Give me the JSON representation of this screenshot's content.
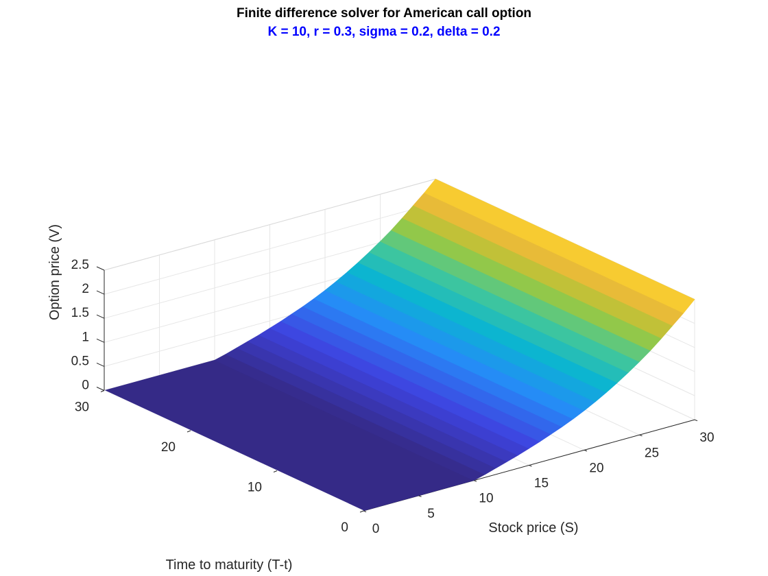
{
  "chart_data": {
    "type": "surface",
    "title": "Finite difference solver for American call option",
    "subtitle": "K = 10, r = 0.3, sigma = 0.2, delta = 0.2",
    "subtitle_color": "#0000ff",
    "xlabel": "Stock price (S)",
    "ylabel": "Time to maturity (T-t)",
    "zlabel": "Option price (V)",
    "xlim": [
      0,
      30
    ],
    "ylim": [
      0,
      30
    ],
    "zlim": [
      0,
      2.5
    ],
    "x_ticks": [
      "0",
      "5",
      "10",
      "15",
      "20",
      "25",
      "30"
    ],
    "y_ticks": [
      "0",
      "10",
      "20",
      "30"
    ],
    "z_ticks": [
      "0",
      "0.5",
      "1",
      "1.5",
      "2",
      "2.5"
    ],
    "x_tick_values": [
      0,
      5,
      10,
      15,
      20,
      25,
      30
    ],
    "y_tick_values": [
      0,
      10,
      20,
      30
    ],
    "z_tick_values": [
      0,
      0.5,
      1,
      1.5,
      2,
      2.5
    ],
    "grid": true,
    "colormap": "parula",
    "surface": {
      "S": [
        0,
        10,
        11,
        12,
        13,
        14,
        15,
        16,
        17,
        18,
        19,
        20,
        21,
        22,
        23,
        24,
        25,
        26,
        27,
        28,
        29,
        30
      ],
      "V": [
        0,
        0,
        0.06,
        0.13,
        0.2,
        0.27,
        0.35,
        0.43,
        0.52,
        0.61,
        0.71,
        0.82,
        0.94,
        1.07,
        1.21,
        1.36,
        1.52,
        1.69,
        1.88,
        2.08,
        2.28,
        2.5
      ],
      "t_range": [
        0,
        30
      ],
      "note": "V does not vary with time to maturity"
    }
  }
}
